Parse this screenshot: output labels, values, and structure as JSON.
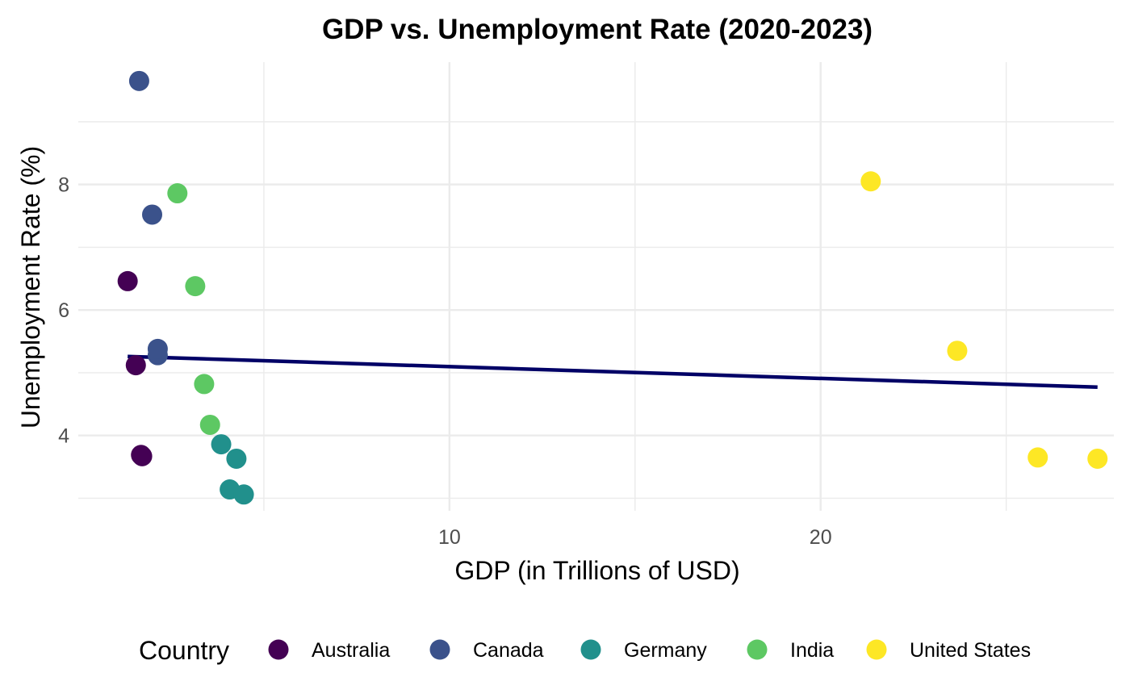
{
  "chart_data": {
    "type": "scatter",
    "title": "GDP vs. Unemployment Rate (2020-2023)",
    "xlabel": "GDP (in Trillions of USD)",
    "ylabel": "Unemployment Rate (%)",
    "xlim": [
      0,
      27.9
    ],
    "ylim": [
      2.8,
      9.95
    ],
    "x_ticks": [
      10,
      20
    ],
    "x_minor_ticks": [
      5,
      15,
      25
    ],
    "y_ticks": [
      4,
      6,
      8
    ],
    "y_minor_ticks": [
      3,
      5,
      7,
      9
    ],
    "grid": true,
    "legend": {
      "title": "Country",
      "position": "bottom"
    },
    "series": [
      {
        "name": "Australia",
        "color": "#440154",
        "points": [
          {
            "x": 1.33,
            "y": 6.46
          },
          {
            "x": 1.55,
            "y": 5.12
          },
          {
            "x": 1.72,
            "y": 3.67
          },
          {
            "x": 1.69,
            "y": 3.69
          }
        ]
      },
      {
        "name": "Canada",
        "color": "#3B528B",
        "points": [
          {
            "x": 1.64,
            "y": 9.65
          },
          {
            "x": 1.99,
            "y": 7.52
          },
          {
            "x": 2.14,
            "y": 5.28
          },
          {
            "x": 2.14,
            "y": 5.38
          }
        ]
      },
      {
        "name": "Germany",
        "color": "#21908C",
        "points": [
          {
            "x": 3.85,
            "y": 3.86
          },
          {
            "x": 4.26,
            "y": 3.63
          },
          {
            "x": 4.08,
            "y": 3.14
          },
          {
            "x": 4.46,
            "y": 3.06
          }
        ]
      },
      {
        "name": "India",
        "color": "#5DC863",
        "points": [
          {
            "x": 2.67,
            "y": 7.86
          },
          {
            "x": 3.15,
            "y": 6.38
          },
          {
            "x": 3.39,
            "y": 4.82
          },
          {
            "x": 3.55,
            "y": 4.17
          }
        ]
      },
      {
        "name": "United States",
        "color": "#FDE725",
        "points": [
          {
            "x": 21.35,
            "y": 8.05
          },
          {
            "x": 23.68,
            "y": 5.35
          },
          {
            "x": 25.85,
            "y": 3.65
          },
          {
            "x": 27.46,
            "y": 3.63
          }
        ]
      }
    ],
    "trend_line": {
      "color": "#000066",
      "x": [
        1.33,
        27.46
      ],
      "y": [
        5.26,
        4.77
      ]
    }
  }
}
